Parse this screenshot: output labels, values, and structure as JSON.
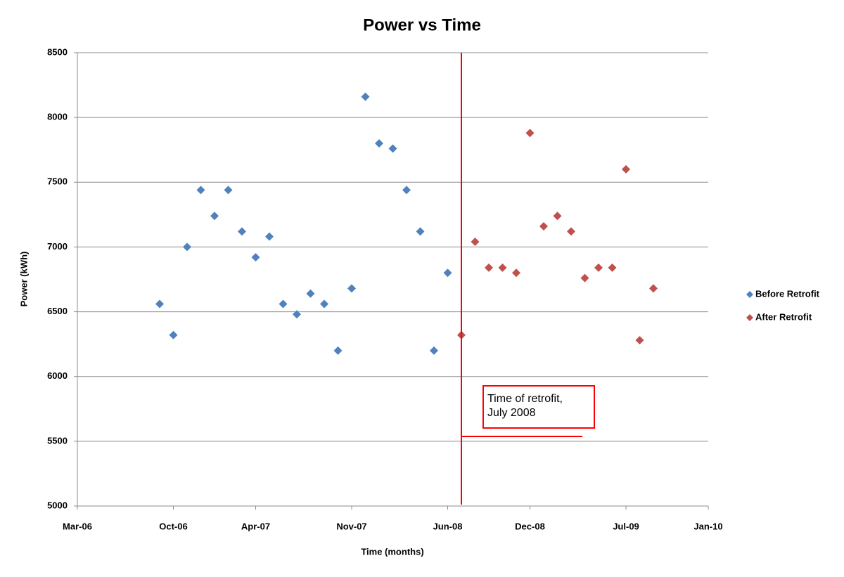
{
  "chart_data": {
    "type": "scatter",
    "title": "Power vs Time",
    "x_label": "Time (months)",
    "y_label": "Power (kWh)",
    "xlim": [
      "2006-03",
      "2010-01"
    ],
    "xticks": [
      {
        "value": "2006-03",
        "label": "Mar-06"
      },
      {
        "value": "2006-10",
        "label": "Oct-06"
      },
      {
        "value": "2007-04",
        "label": "Apr-07"
      },
      {
        "value": "2007-11",
        "label": "Nov-07"
      },
      {
        "value": "2008-06",
        "label": "Jun-08"
      },
      {
        "value": "2008-12",
        "label": "Dec-08"
      },
      {
        "value": "2009-07",
        "label": "Jul-09"
      },
      {
        "value": "2010-01",
        "label": "Jan-10"
      }
    ],
    "ylim": [
      5000,
      8500
    ],
    "yticks": [
      5000,
      5500,
      6000,
      6500,
      7000,
      7500,
      8000,
      8500
    ],
    "grid": true,
    "legend": "right",
    "series": [
      {
        "name": "Before Retrofit",
        "color": "#4f81bd",
        "x": [
          "2006-09",
          "2006-10",
          "2006-11",
          "2006-12",
          "2007-01",
          "2007-02",
          "2007-03",
          "2007-04",
          "2007-05",
          "2007-06",
          "2007-07",
          "2007-08",
          "2007-09",
          "2007-10",
          "2007-11",
          "2007-12",
          "2008-01",
          "2008-02",
          "2008-03",
          "2008-04",
          "2008-05",
          "2008-06"
        ],
        "values": [
          6560,
          6320,
          7000,
          7440,
          7240,
          7440,
          7120,
          6920,
          7080,
          6560,
          6480,
          6640,
          6560,
          6200,
          6680,
          8160,
          7800,
          7760,
          7440,
          7120,
          6200,
          6800
        ]
      },
      {
        "name": "After Retrofit",
        "color": "#c0504d",
        "x": [
          "2008-07",
          "2008-08",
          "2008-09",
          "2008-10",
          "2008-11",
          "2008-12",
          "2009-01",
          "2009-02",
          "2009-03",
          "2009-04",
          "2009-05",
          "2009-06",
          "2009-07",
          "2009-08",
          "2009-09"
        ],
        "values": [
          6320,
          7040,
          6840,
          6840,
          6800,
          7880,
          7160,
          7240,
          7120,
          6760,
          6840,
          6840,
          7600,
          6280,
          6680
        ]
      }
    ],
    "annotation": {
      "x": "2008-07",
      "color": "#ff0000",
      "text": [
        "Time of retrofit,",
        "July 2008"
      ]
    }
  }
}
